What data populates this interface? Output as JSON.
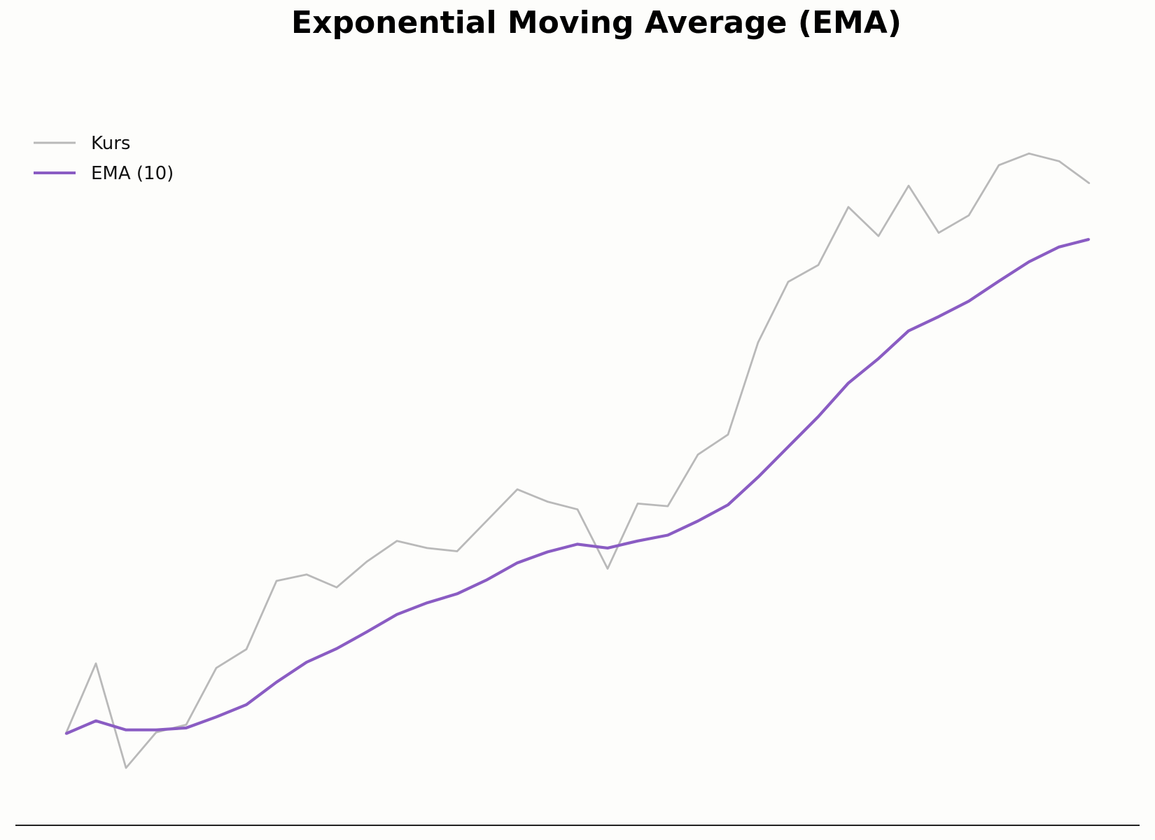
{
  "chart_data": {
    "type": "line",
    "title": "Exponential Moving Average (EMA)",
    "xlabel": "",
    "ylabel": "",
    "grid": false,
    "legend_placement": "top-left",
    "x": [
      0,
      1,
      2,
      3,
      4,
      5,
      6,
      7,
      8,
      9,
      10,
      11,
      12,
      13,
      14,
      15,
      16,
      17,
      18,
      19,
      20,
      21,
      22,
      23,
      24,
      25,
      26,
      27,
      28,
      29,
      30,
      31,
      32,
      33,
      34
    ],
    "ylim": [
      0,
      100
    ],
    "series": [
      {
        "name": "Kurs",
        "color": "#b9b9b9",
        "values": [
          9.1,
          20.0,
          3.8,
          9.3,
          10.5,
          19.3,
          22.2,
          32.8,
          33.8,
          31.8,
          35.8,
          39.0,
          37.9,
          37.4,
          42.2,
          47.0,
          45.1,
          43.9,
          34.7,
          44.8,
          44.4,
          52.4,
          55.5,
          69.8,
          79.2,
          81.8,
          90.8,
          86.3,
          94.1,
          86.8,
          89.5,
          97.3,
          99.1,
          97.9,
          94.5
        ]
      },
      {
        "name": "EMA (10)",
        "color": "#8a5cc3",
        "values": [
          9.1,
          11.1,
          9.7,
          9.7,
          10.0,
          11.7,
          13.6,
          17.1,
          20.2,
          22.3,
          24.9,
          27.6,
          29.4,
          30.8,
          33.0,
          35.6,
          37.3,
          38.5,
          37.9,
          39.0,
          39.9,
          42.1,
          44.6,
          48.9,
          53.6,
          58.3,
          63.5,
          67.3,
          71.6,
          73.8,
          76.2,
          79.3,
          82.3,
          84.6,
          85.8
        ]
      }
    ]
  }
}
